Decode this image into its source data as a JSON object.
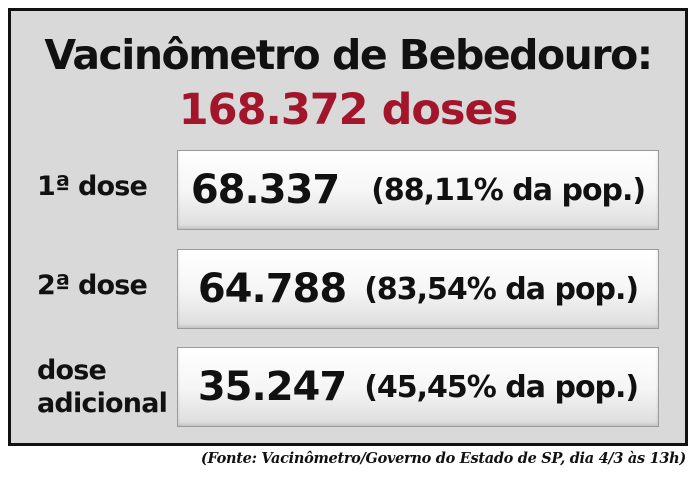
{
  "title": "Vacinômetro de Bebedouro:",
  "total": "168.372 doses",
  "rows": [
    {
      "label_line1": "1ª dose",
      "label_line2": "",
      "value": "68.337",
      "percent": "(88,11% da pop.)"
    },
    {
      "label_line1": "2ª dose",
      "label_line2": "",
      "value": "64.788",
      "percent": "(83,54% da pop.)"
    },
    {
      "label_line1": "dose",
      "label_line2": "adicional",
      "value": "35.247",
      "percent": "(45,45% da pop.)"
    }
  ],
  "source": "(Fonte: Vacinômetro/Governo do Estado de SP, dia 4/3 às 13h)",
  "colors": {
    "accent": "#a3152a",
    "panel_bg": "#d9d9d9",
    "border": "#111111"
  }
}
